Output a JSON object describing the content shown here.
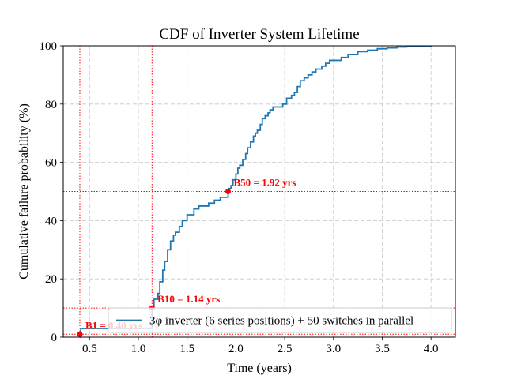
{
  "chart_data": {
    "type": "line",
    "title": "CDF of Inverter System Lifetime",
    "xlabel": "Time (years)",
    "ylabel": "Cumulative failure probability (%)",
    "xlim": [
      0.23,
      4.25
    ],
    "ylim": [
      0,
      100
    ],
    "xticks": [
      0.5,
      1.0,
      1.5,
      2.0,
      2.5,
      3.0,
      3.5,
      4.0
    ],
    "xtick_labels": [
      "0.5",
      "1.0",
      "1.5",
      "2.0",
      "2.5",
      "3.0",
      "3.5",
      "4.0"
    ],
    "yticks": [
      0,
      20,
      40,
      60,
      80,
      100
    ],
    "ytick_labels": [
      "0",
      "20",
      "40",
      "60",
      "80",
      "100"
    ],
    "grid": true,
    "legend_position": "bottom-right",
    "series": [
      {
        "name": "3φ inverter (6 series positions) + 50 switches in parallel",
        "color": "#1f77b4",
        "step": true,
        "x": [
          0.4,
          0.41,
          1.12,
          1.14,
          1.16,
          1.2,
          1.22,
          1.25,
          1.27,
          1.3,
          1.33,
          1.36,
          1.38,
          1.42,
          1.45,
          1.5,
          1.57,
          1.62,
          1.68,
          1.72,
          1.78,
          1.84,
          1.92,
          1.93,
          1.95,
          1.97,
          2.0,
          2.02,
          2.04,
          2.07,
          2.1,
          2.12,
          2.15,
          2.18,
          2.2,
          2.22,
          2.25,
          2.27,
          2.3,
          2.33,
          2.35,
          2.38,
          2.43,
          2.48,
          2.52,
          2.57,
          2.6,
          2.63,
          2.66,
          2.7,
          2.74,
          2.78,
          2.82,
          2.85,
          2.88,
          2.92,
          2.96,
          3.02,
          3.08,
          3.15,
          3.25,
          3.35,
          3.45,
          3.55,
          3.65,
          3.75,
          3.85,
          4.0
        ],
        "y": [
          0,
          3,
          3,
          10,
          13,
          15,
          19,
          23,
          26,
          30,
          33,
          35,
          36,
          38,
          40,
          42,
          44,
          45,
          45,
          46,
          47,
          48,
          50,
          51,
          52,
          54,
          56,
          58,
          59,
          61,
          63,
          65,
          67,
          69,
          70,
          71,
          73,
          75,
          76,
          77,
          78,
          79,
          79,
          80,
          82,
          83,
          84,
          86,
          88,
          89,
          90,
          91,
          92,
          92,
          93,
          94,
          95,
          95,
          96,
          97,
          98,
          98.5,
          99,
          99.3,
          99.6,
          99.8,
          99.9,
          100
        ]
      }
    ],
    "markers": [
      {
        "x": 0.4,
        "y": 1,
        "label": "B1 = 0.40 yrs"
      },
      {
        "x": 1.14,
        "y": 10,
        "label": "B10 = 1.14 yrs"
      },
      {
        "x": 1.92,
        "y": 50,
        "label": "B50 = 1.92 yrs"
      }
    ],
    "marker_color": "#ff0000"
  }
}
